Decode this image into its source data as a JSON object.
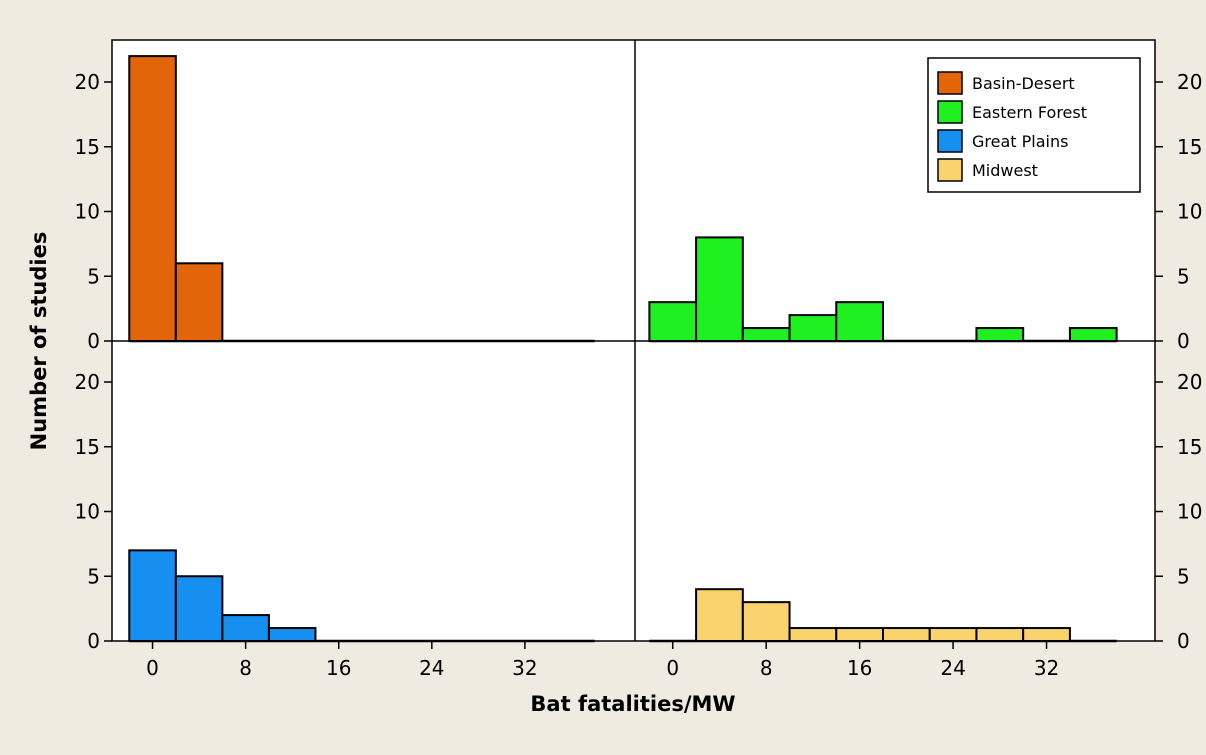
{
  "chart_data": {
    "type": "bar",
    "xlabel": "Bat fatalities/MW",
    "ylabel": "Number of studies",
    "ylim": [
      0,
      24
    ],
    "xlim": [
      -4,
      40
    ],
    "bin_width": 4,
    "x_ticks": [
      0,
      8,
      16,
      24,
      32
    ],
    "x_tick_labels": [
      "0",
      "8",
      "16",
      "24",
      "32"
    ],
    "y_ticks": [
      0,
      5,
      10,
      15,
      20
    ],
    "y_tick_labels_left": [
      "0",
      "5",
      "10",
      "15",
      "20"
    ],
    "y_tick_labels_right": [
      "0",
      "5",
      "10",
      "15",
      "20"
    ],
    "bin_centers": [
      0,
      4,
      8,
      12,
      16,
      20,
      24,
      28,
      32,
      36
    ],
    "legend_position": "top-right",
    "series": [
      {
        "name": "Basin-Desert",
        "color": "#e2650a",
        "panel": "top-left",
        "values": [
          22,
          6,
          0,
          0,
          0,
          0,
          0,
          0,
          0,
          0
        ]
      },
      {
        "name": "Eastern Forest",
        "color": "#1ff01f",
        "panel": "top-right",
        "values": [
          3,
          8,
          1,
          2,
          3,
          0,
          0,
          1,
          0,
          1
        ]
      },
      {
        "name": "Great Plains",
        "color": "#168ff0",
        "panel": "bottom-left",
        "values": [
          7,
          5,
          2,
          1,
          0,
          0,
          0,
          0,
          0,
          0
        ]
      },
      {
        "name": "Midwest",
        "color": "#f9d46e",
        "panel": "bottom-right",
        "values": [
          0,
          4,
          3,
          1,
          1,
          1,
          1,
          1,
          1,
          0
        ]
      }
    ]
  }
}
